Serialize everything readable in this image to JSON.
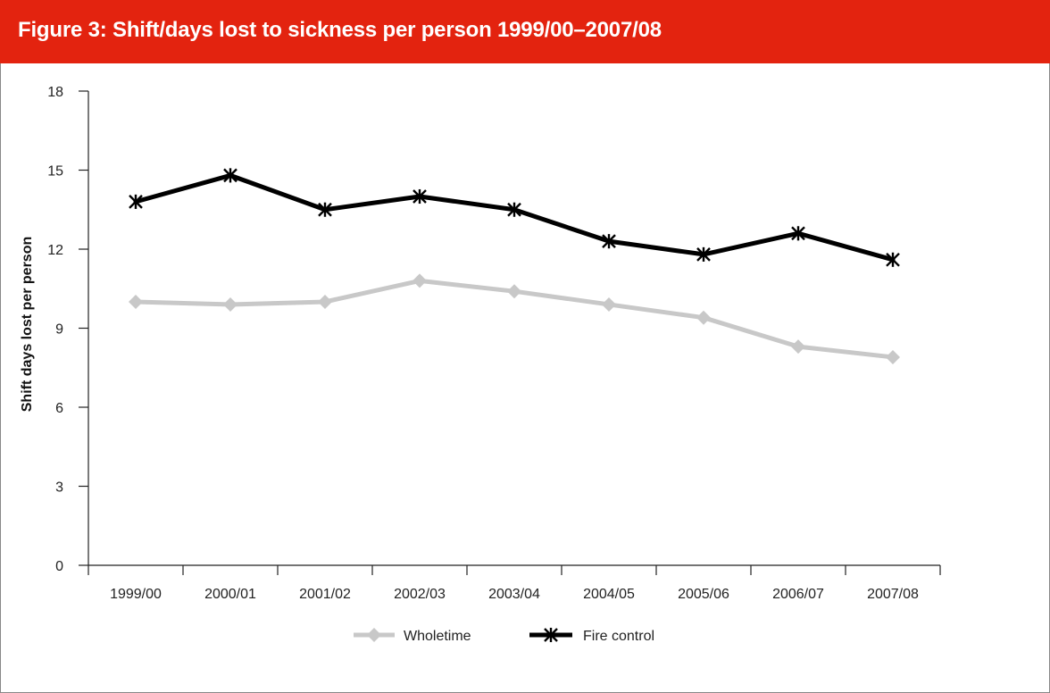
{
  "figure": {
    "title": "Figure 3:  Shift/days lost to sickness per person 1999/00–2007/08"
  },
  "colors": {
    "header": "#e3230f",
    "wholetime": "#c8c8c8",
    "fire_control": "#000000",
    "axis": "#222222"
  },
  "chart_data": {
    "type": "line",
    "title": "Figure 3:  Shift/days lost to sickness per person 1999/00–2007/08",
    "xlabel": "",
    "ylabel": "Shift days lost per person",
    "categories": [
      "1999/00",
      "2000/01",
      "2001/02",
      "2002/03",
      "2003/04",
      "2004/05",
      "2005/06",
      "2006/07",
      "2007/08"
    ],
    "ylim": [
      0,
      18
    ],
    "yticks": [
      "0",
      "3",
      "6",
      "9",
      "12",
      "15",
      "18"
    ],
    "grid": false,
    "legend_position": "bottom",
    "series": [
      {
        "name": "Wholetime",
        "marker": "diamond",
        "values": [
          10.0,
          9.9,
          10.0,
          10.8,
          10.4,
          9.9,
          9.4,
          8.3,
          7.9
        ]
      },
      {
        "name": "Fire control",
        "marker": "asterisk",
        "values": [
          13.8,
          14.8,
          13.5,
          14.0,
          13.5,
          12.3,
          11.8,
          12.6,
          11.6
        ]
      }
    ]
  }
}
